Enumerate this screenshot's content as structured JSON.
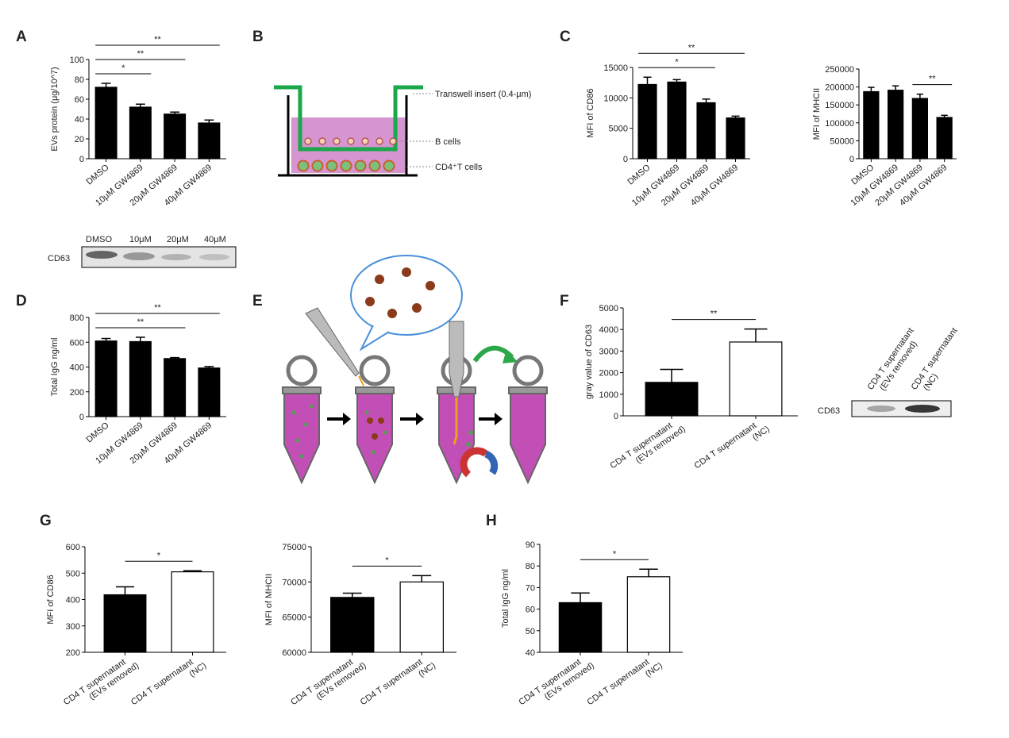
{
  "panels": [
    "A",
    "B",
    "C",
    "D",
    "E",
    "F",
    "G",
    "H"
  ],
  "blot_a": {
    "label": "CD63",
    "lanes": [
      "DMSO",
      "10μM",
      "20μM",
      "40μM"
    ]
  },
  "blot_f": {
    "label": "CD63",
    "lanes": [
      "CD4 T supernatant (EVs removed)",
      "CD4 T supernatant (NC)"
    ]
  },
  "diagram_b": {
    "labels": [
      "Transwell insert (0.4-μm)",
      "B cells",
      "CD4⁺T cells"
    ]
  },
  "chart_data": [
    {
      "type": "bar",
      "ylabel": "EVs protein (μg/10^7)",
      "categories": [
        "DMSO",
        "10μM GW4869",
        "20μM GW4869",
        "40μM GW4869"
      ],
      "values": [
        72,
        52,
        45,
        36
      ],
      "errors": [
        4,
        3,
        2,
        3
      ],
      "colors": [
        "#000000",
        "#000000",
        "#000000",
        "#000000"
      ],
      "ylim": [
        0,
        100
      ],
      "yticks": [
        0,
        20,
        40,
        60,
        80,
        100
      ],
      "significance": [
        {
          "between": [
            "DMSO",
            "10μM GW4869"
          ],
          "label": "*"
        },
        {
          "between": [
            "DMSO",
            "20μM GW4869"
          ],
          "label": "**"
        },
        {
          "between": [
            "DMSO",
            "40μM GW4869"
          ],
          "label": "**"
        }
      ]
    },
    {
      "type": "bar",
      "ylabel": "MFI of CD86",
      "categories": [
        "DMSO",
        "10μM GW4869",
        "20μM GW4869",
        "40μM GW4869"
      ],
      "values": [
        12200,
        12600,
        9200,
        6700
      ],
      "errors": [
        1200,
        400,
        600,
        300
      ],
      "colors": [
        "#000000",
        "#000000",
        "#000000",
        "#000000"
      ],
      "ylim": [
        0,
        15000
      ],
      "yticks": [
        0,
        5000,
        10000,
        15000
      ],
      "significance": [
        {
          "between": [
            "DMSO",
            "20μM GW4869"
          ],
          "label": "*"
        },
        {
          "between": [
            "DMSO",
            "40μM GW4869"
          ],
          "label": "**"
        }
      ]
    },
    {
      "type": "bar",
      "ylabel": "MFI of MHCII",
      "categories": [
        "DMSO",
        "10μM GW4869",
        "20μM GW4869",
        "40μM GW4869"
      ],
      "values": [
        187000,
        191000,
        168000,
        115000
      ],
      "errors": [
        12000,
        12000,
        12000,
        6000
      ],
      "colors": [
        "#000000",
        "#000000",
        "#000000",
        "#000000"
      ],
      "ylim": [
        0,
        250000
      ],
      "yticks": [
        0,
        50000,
        100000,
        150000,
        200000,
        250000
      ],
      "significance": [
        {
          "between": [
            "20μM GW4869",
            "40μM GW4869"
          ],
          "label": "**"
        }
      ]
    },
    {
      "type": "bar",
      "ylabel": "Total IgG ng/ml",
      "categories": [
        "DMSO",
        "10μM GW4869",
        "20μM GW4869",
        "40μM GW4869"
      ],
      "values": [
        610,
        605,
        468,
        392
      ],
      "errors": [
        20,
        35,
        8,
        12
      ],
      "colors": [
        "#000000",
        "#000000",
        "#000000",
        "#000000"
      ],
      "ylim": [
        0,
        800
      ],
      "yticks": [
        0,
        200,
        400,
        600,
        800
      ],
      "significance": [
        {
          "between": [
            "DMSO",
            "20μM GW4869"
          ],
          "label": "**"
        },
        {
          "between": [
            "DMSO",
            "40μM GW4869"
          ],
          "label": "**"
        }
      ]
    },
    {
      "type": "bar",
      "ylabel": "gray value of CD63",
      "categories": [
        "CD4 T supernatant (EVs removed)",
        "CD4 T supernatant (NC)"
      ],
      "values": [
        1550,
        3420
      ],
      "errors": [
        600,
        600
      ],
      "colors": [
        "#000000",
        "#ffffff"
      ],
      "ylim": [
        0,
        5000
      ],
      "yticks": [
        0,
        1000,
        2000,
        3000,
        4000,
        5000
      ],
      "significance": [
        {
          "between": [
            "CD4 T supernatant (EVs removed)",
            "CD4 T supernatant (NC)"
          ],
          "label": "**"
        }
      ]
    },
    {
      "type": "bar",
      "ylabel": "MFI of CD86",
      "categories": [
        "CD4 T supernatant (EVs removed)",
        "CD4 T supernatant (NC)"
      ],
      "values": [
        418,
        505
      ],
      "errors": [
        30,
        4
      ],
      "colors": [
        "#000000",
        "#ffffff"
      ],
      "ylim": [
        200,
        600
      ],
      "yticks": [
        200,
        300,
        400,
        500,
        600
      ],
      "significance": [
        {
          "between": [
            "CD4 T supernatant (EVs removed)",
            "CD4 T supernatant (NC)"
          ],
          "label": "*"
        }
      ]
    },
    {
      "type": "bar",
      "ylabel": "MFI of MHCII",
      "categories": [
        "CD4 T supernatant (EVs removed)",
        "CD4 T supernatant (NC)"
      ],
      "values": [
        67800,
        70000
      ],
      "errors": [
        600,
        900
      ],
      "colors": [
        "#000000",
        "#ffffff"
      ],
      "ylim": [
        60000,
        75000
      ],
      "yticks": [
        60000,
        65000,
        70000,
        75000
      ],
      "significance": [
        {
          "between": [
            "CD4 T supernatant (EVs removed)",
            "CD4 T supernatant (NC)"
          ],
          "label": "*"
        }
      ]
    },
    {
      "type": "bar",
      "ylabel": "Total IgG ng/ml",
      "categories": [
        "CD4 T supernatant (EVs removed)",
        "CD4 T supernatant (NC)"
      ],
      "values": [
        63,
        75
      ],
      "errors": [
        4.5,
        3.5
      ],
      "colors": [
        "#000000",
        "#ffffff"
      ],
      "ylim": [
        40,
        90
      ],
      "yticks": [
        40,
        50,
        60,
        70,
        80,
        90
      ],
      "significance": [
        {
          "between": [
            "CD4 T supernatant (EVs removed)",
            "CD4 T supernatant (NC)"
          ],
          "label": "*"
        }
      ]
    }
  ]
}
